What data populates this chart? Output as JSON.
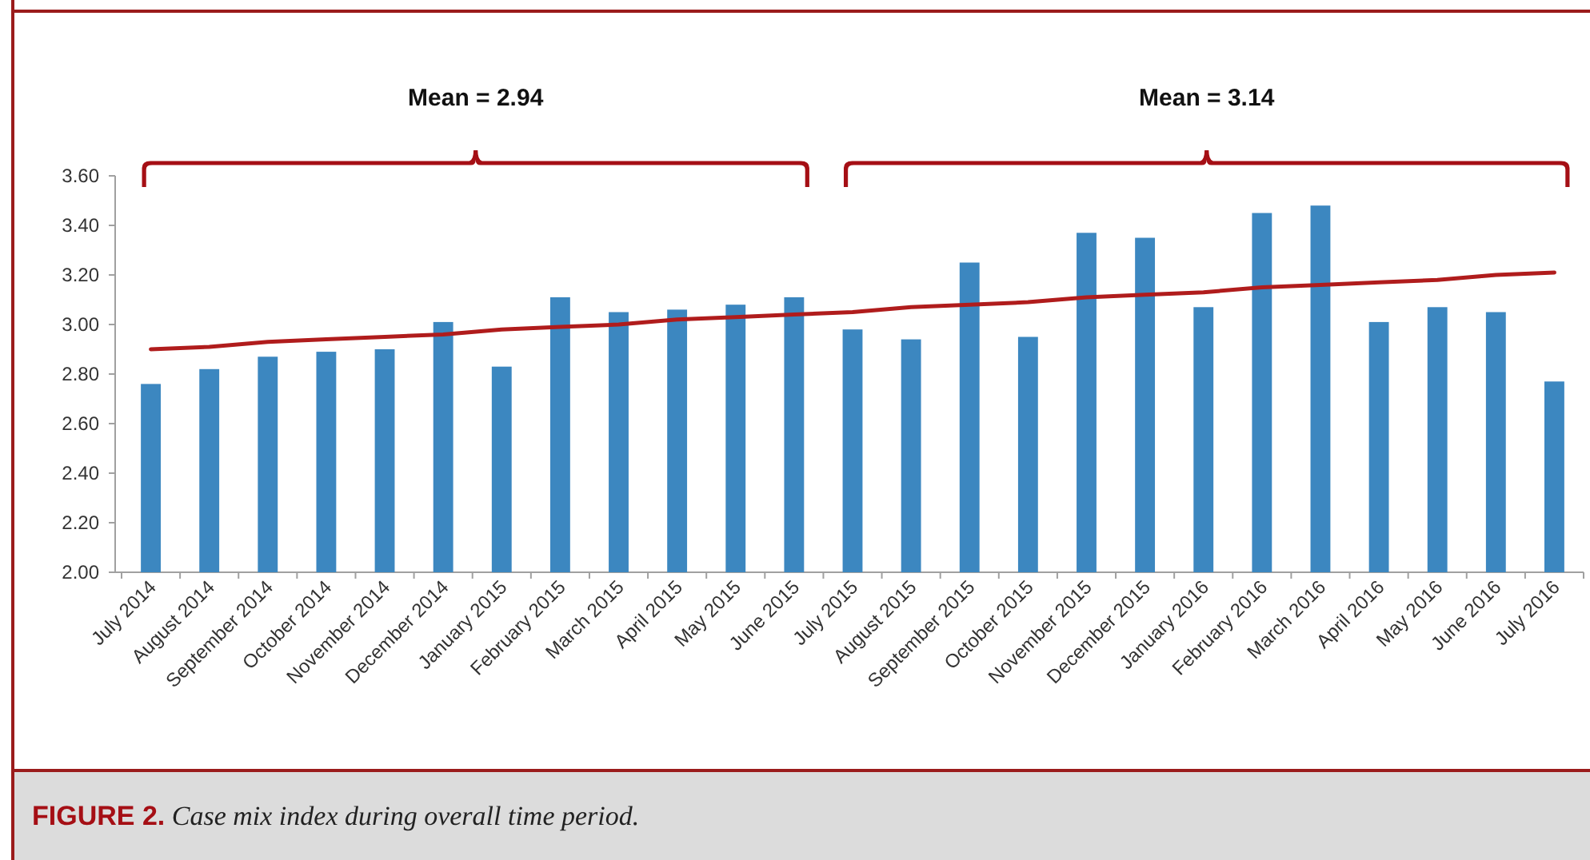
{
  "chart_data": {
    "type": "bar",
    "categories": [
      "July 2014",
      "August 2014",
      "September 2014",
      "October 2014",
      "November 2014",
      "December 2014",
      "January 2015",
      "February 2015",
      "March 2015",
      "April 2015",
      "May 2015",
      "June 2015",
      "July 2015",
      "August 2015",
      "September 2015",
      "October 2015",
      "November 2015",
      "December 2015",
      "January 2016",
      "February 2016",
      "March 2016",
      "April 2016",
      "May 2016",
      "June 2016",
      "July 2016"
    ],
    "series": [
      {
        "color": "#3c87c0",
        "values": [
          2.76,
          2.82,
          2.87,
          2.89,
          2.9,
          3.01,
          2.83,
          3.11,
          3.05,
          3.06,
          3.08,
          3.11,
          2.98,
          2.94,
          3.25,
          2.95,
          3.37,
          3.35,
          3.07,
          3.45,
          3.48,
          3.01,
          3.07,
          3.05,
          2.77
        ]
      },
      {
        "type": "line",
        "color": "#b01c1c",
        "values": [
          2.9,
          2.91,
          2.93,
          2.94,
          2.95,
          2.96,
          2.98,
          2.99,
          3.0,
          3.02,
          3.03,
          3.04,
          3.05,
          3.07,
          3.08,
          3.09,
          3.11,
          3.12,
          3.13,
          3.15,
          3.16,
          3.17,
          3.18,
          3.2,
          3.21
        ]
      }
    ],
    "ylim": [
      2.0,
      3.6
    ],
    "yticks": [
      {
        "value": 2.0,
        "label": "2.00"
      },
      {
        "value": 2.2,
        "label": "2.20"
      },
      {
        "value": 2.4,
        "label": "2.40"
      },
      {
        "value": 2.6,
        "label": "2.60"
      },
      {
        "value": 2.8,
        "label": "2.80"
      },
      {
        "value": 3.0,
        "label": "3.00"
      },
      {
        "value": 3.2,
        "label": "3.20"
      },
      {
        "value": 3.4,
        "label": "3.40"
      },
      {
        "value": 3.6,
        "label": "3.60"
      }
    ],
    "grid": false,
    "marker": "none",
    "line_style": "solid",
    "annotations": [
      "Mean = 2.94",
      "Mean = 3.14",
      "FIGURE 2. Case mix index during overall time period."
    ]
  }
}
